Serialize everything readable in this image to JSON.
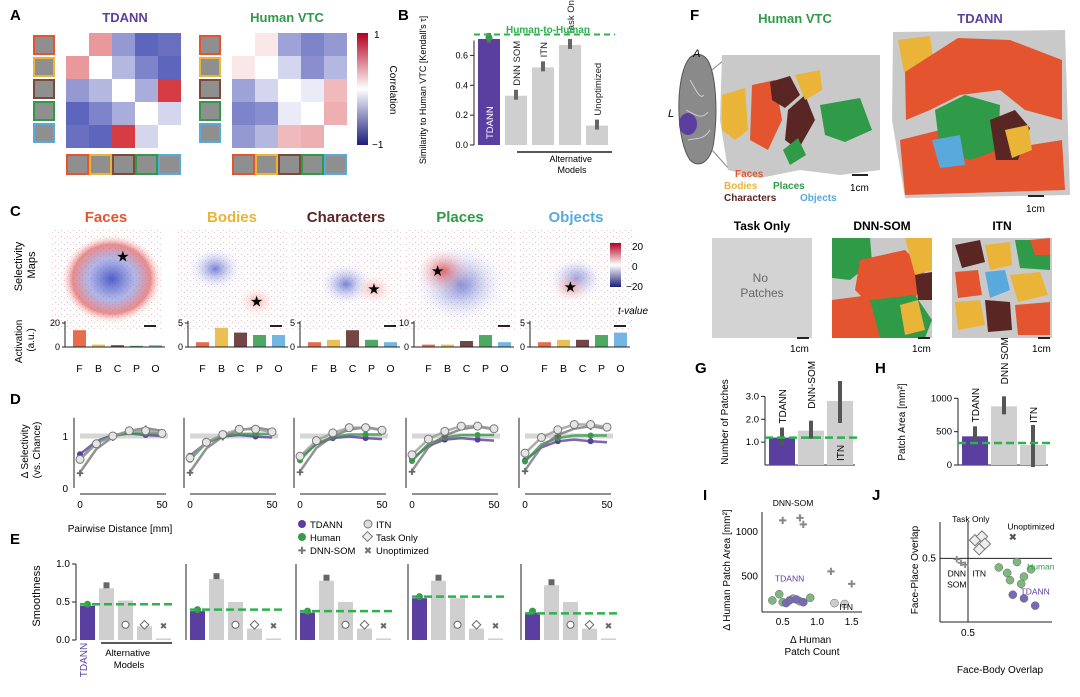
{
  "panels": {
    "A": {
      "letter": "A",
      "title_left": "TDANN",
      "title_right": "Human VTC",
      "colorbar": {
        "label": "Correlation",
        "max": "1",
        "min": "−1"
      }
    },
    "B": {
      "letter": "B",
      "ylabel": "Similarity to Human VTC [Kendall's τ]",
      "yticks": [
        "0.0",
        "0.2",
        "0.4",
        "0.6"
      ],
      "reference_label": "Human-to-Human",
      "group_label": "Alternative Models"
    },
    "C": {
      "letter": "C",
      "row_label": "Selectivity Maps",
      "colorbar": {
        "max": "20",
        "mid": "0",
        "min": "−20",
        "label": "t-value"
      },
      "activation_label": "Activation (a.u.)",
      "categories": [
        "F",
        "B",
        "C",
        "P",
        "O"
      ]
    },
    "D": {
      "letter": "D",
      "ylabel": "Δ Selectivity (vs. Chance)",
      "yticks": [
        "0",
        "1"
      ],
      "xticks": [
        "0",
        "50"
      ],
      "xlabel": "Pairwise Distance [mm]"
    },
    "E": {
      "letter": "E",
      "ylabel": "Smoothness",
      "yticks": [
        "0.0",
        "0.5",
        "1.0"
      ],
      "tdann_label": "TDANN",
      "group_label": "Alternative Models"
    },
    "F": {
      "letter": "F",
      "title_left": "Human VTC",
      "title_right": "TDANN",
      "brain_labels": {
        "anterior": "A",
        "lateral": "L"
      },
      "scale": "1cm",
      "legend": [
        "Faces",
        "Bodies",
        "Characters",
        "Places",
        "Objects"
      ],
      "sub_titles": [
        "Task Only",
        "DNN-SOM",
        "ITN"
      ],
      "no_patches": "No Patches"
    },
    "G": {
      "letter": "G",
      "ylabel": "Number of Patches",
      "yticks": [
        "1.0",
        "2.0",
        "3.0"
      ],
      "bars": [
        "TDANN",
        "DNN-SOM",
        "ITN"
      ]
    },
    "H": {
      "letter": "H",
      "ylabel": "Patch Area [mm²]",
      "yticks": [
        "0",
        "500",
        "1000"
      ],
      "bars": [
        "TDANN",
        "DNN SOM",
        "ITN"
      ]
    },
    "I": {
      "letter": "I",
      "ylabel": "Δ Human Patch Area [mm²]",
      "xlabel": "Δ Human Patch Count",
      "yticks": [
        "500",
        "1000"
      ],
      "xticks": [
        "0.5",
        "1.0",
        "1.5"
      ],
      "labels": {
        "dnnsom": "DNN-SOM",
        "tdann": "TDANN",
        "itn": "ITN"
      }
    },
    "J": {
      "letter": "J",
      "ylabel": "Face-Place Overlap",
      "xlabel": "Face-Body Overlap",
      "ytick": "0.5",
      "xtick": "0.5",
      "labels": {
        "task_only": "Task Only",
        "unoptimized": "Unoptimized",
        "human": "Human",
        "tdann": "TDANN",
        "itn": "ITN",
        "dnn": "DNN",
        "som": "SOM"
      }
    }
  },
  "legend": {
    "items": [
      "TDANN",
      "Human",
      "DNN-SOM",
      "ITN",
      "Task Only",
      "Unoptimized"
    ]
  },
  "colors": {
    "tdann": "#5b3fa0",
    "human": "#3a9a4a",
    "faces": "#e4542e",
    "bodies": "#e9b437",
    "characters": "#5a2624",
    "places": "#2f9a48",
    "objects": "#5aa9dc",
    "gray": "#cfcfcf",
    "dashed": "#2bb24c"
  },
  "chart_data": [
    {
      "type": "bar",
      "id": "B",
      "categories": [
        "TDANN",
        "DNN SOM",
        "ITN",
        "Task Only",
        "Unoptimized"
      ],
      "values": [
        0.71,
        0.33,
        0.52,
        0.67,
        0.13
      ],
      "reference": 0.74,
      "ylim": [
        0,
        0.75
      ],
      "ylabel": "Similarity to Human VTC [Kendall's τ]"
    },
    {
      "type": "bar",
      "id": "G",
      "categories": [
        "TDANN",
        "DNN-SOM",
        "ITN"
      ],
      "values": [
        1.2,
        1.5,
        2.8
      ],
      "reference": 1.2,
      "ylim": [
        0,
        3.5
      ],
      "ylabel": "Number of Patches"
    },
    {
      "type": "bar",
      "id": "H",
      "categories": [
        "TDANN",
        "DNN SOM",
        "ITN"
      ],
      "values": [
        430,
        880,
        300
      ],
      "reference": 330,
      "ylim": [
        0,
        1200
      ],
      "ylabel": "Patch Area [mm²]"
    },
    {
      "type": "bar",
      "id": "E",
      "categories": [
        "TDANN",
        "DNN-SOM",
        "ITN",
        "Task Only",
        "Unoptimized"
      ],
      "series": [
        {
          "name": "Faces",
          "values": [
            0.45,
            0.68,
            0.52,
            0.18,
            0.02
          ],
          "reference": 0.47
        },
        {
          "name": "Bodies",
          "values": [
            0.38,
            0.8,
            0.5,
            0.15,
            0.02
          ],
          "reference": 0.4
        },
        {
          "name": "Characters",
          "values": [
            0.36,
            0.78,
            0.5,
            0.15,
            0.02
          ],
          "reference": 0.38
        },
        {
          "name": "Places",
          "values": [
            0.55,
            0.78,
            0.55,
            0.15,
            0.02
          ],
          "reference": 0.57
        },
        {
          "name": "Objects",
          "values": [
            0.36,
            0.72,
            0.5,
            0.15,
            0.02
          ],
          "reference": 0.35
        }
      ],
      "ylim": [
        0,
        1.0
      ]
    },
    {
      "type": "bar",
      "id": "C-activation",
      "categories": [
        "F",
        "B",
        "C",
        "P",
        "O"
      ],
      "series": [
        {
          "name": "Faces",
          "values": [
            14,
            2,
            1.5,
            1,
            1.5
          ],
          "ymax": 20
        },
        {
          "name": "Bodies",
          "values": [
            1,
            4,
            3,
            2.5,
            2.5
          ],
          "ymax": 5
        },
        {
          "name": "Characters",
          "values": [
            1,
            1.5,
            3.5,
            1.5,
            1
          ],
          "ymax": 5
        },
        {
          "name": "Places",
          "values": [
            1,
            1,
            2.5,
            5,
            2
          ],
          "ymax": 10
        },
        {
          "name": "Objects",
          "values": [
            1,
            1.5,
            1.5,
            2.5,
            3
          ],
          "ymax": 5
        }
      ],
      "ylabel": "Activation (a.u.)"
    },
    {
      "type": "line",
      "id": "D",
      "x": [
        0,
        10,
        20,
        30,
        40,
        50
      ],
      "series": [
        {
          "name": "TDANN",
          "values": [
            0.65,
            0.9,
            1.02,
            1.05,
            1.02,
            1.0
          ]
        },
        {
          "name": "Human",
          "values": [
            0.55,
            0.88,
            1.0,
            1.05,
            1.05,
            1.05
          ]
        },
        {
          "name": "DNN-SOM",
          "values": [
            0.3,
            0.75,
            0.98,
            1.1,
            1.15,
            1.1
          ]
        },
        {
          "name": "ITN",
          "values": [
            0.55,
            0.85,
            1.0,
            1.1,
            1.1,
            1.05
          ]
        }
      ],
      "ylim": [
        0,
        1.5
      ],
      "xlabel": "Pairwise Distance [mm]",
      "ylabel": "Δ Selectivity (vs. Chance)"
    },
    {
      "type": "scatter",
      "id": "I",
      "series": [
        {
          "name": "Human",
          "points": [
            [
              0.35,
              230
            ],
            [
              0.5,
              210
            ],
            [
              0.65,
              250
            ],
            [
              0.75,
              220
            ],
            [
              0.9,
              260
            ],
            [
              0.45,
              300
            ]
          ]
        },
        {
          "name": "TDANN",
          "points": [
            [
              0.55,
              200
            ],
            [
              0.7,
              240
            ],
            [
              0.8,
              210
            ],
            [
              0.6,
              230
            ]
          ]
        },
        {
          "name": "DNN-SOM",
          "points": [
            [
              0.5,
              1130
            ],
            [
              0.75,
              1160
            ],
            [
              0.8,
              1090
            ],
            [
              1.2,
              560
            ],
            [
              1.5,
              420
            ]
          ]
        },
        {
          "name": "ITN",
          "points": [
            [
              1.25,
              200
            ],
            [
              1.4,
              190
            ]
          ]
        }
      ],
      "xlabel": "Δ Human Patch Count",
      "ylabel": "Δ Human Patch Area [mm²]"
    },
    {
      "type": "scatter",
      "id": "J",
      "series": [
        {
          "name": "Human",
          "points": [
            [
              0.72,
              0.45
            ],
            [
              0.78,
              0.42
            ],
            [
              0.85,
              0.48
            ],
            [
              0.9,
              0.4
            ],
            [
              0.95,
              0.44
            ],
            [
              0.88,
              0.36
            ],
            [
              0.8,
              0.38
            ]
          ]
        },
        {
          "name": "TDANN",
          "points": [
            [
              0.82,
              0.3
            ],
            [
              0.9,
              0.28
            ],
            [
              0.98,
              0.24
            ]
          ]
        },
        {
          "name": "Task Only",
          "points": [
            [
              0.55,
              0.6
            ],
            [
              0.6,
              0.62
            ],
            [
              0.62,
              0.58
            ],
            [
              0.58,
              0.55
            ]
          ]
        },
        {
          "name": "DNN-SOM",
          "points": [
            [
              0.42,
              0.5
            ],
            [
              0.45,
              0.48
            ],
            [
              0.48,
              0.47
            ]
          ]
        },
        {
          "name": "Unoptimized",
          "points": [
            [
              0.82,
              0.62
            ]
          ]
        }
      ],
      "xlabel": "Face-Body Overlap",
      "ylabel": "Face-Place Overlap"
    }
  ]
}
